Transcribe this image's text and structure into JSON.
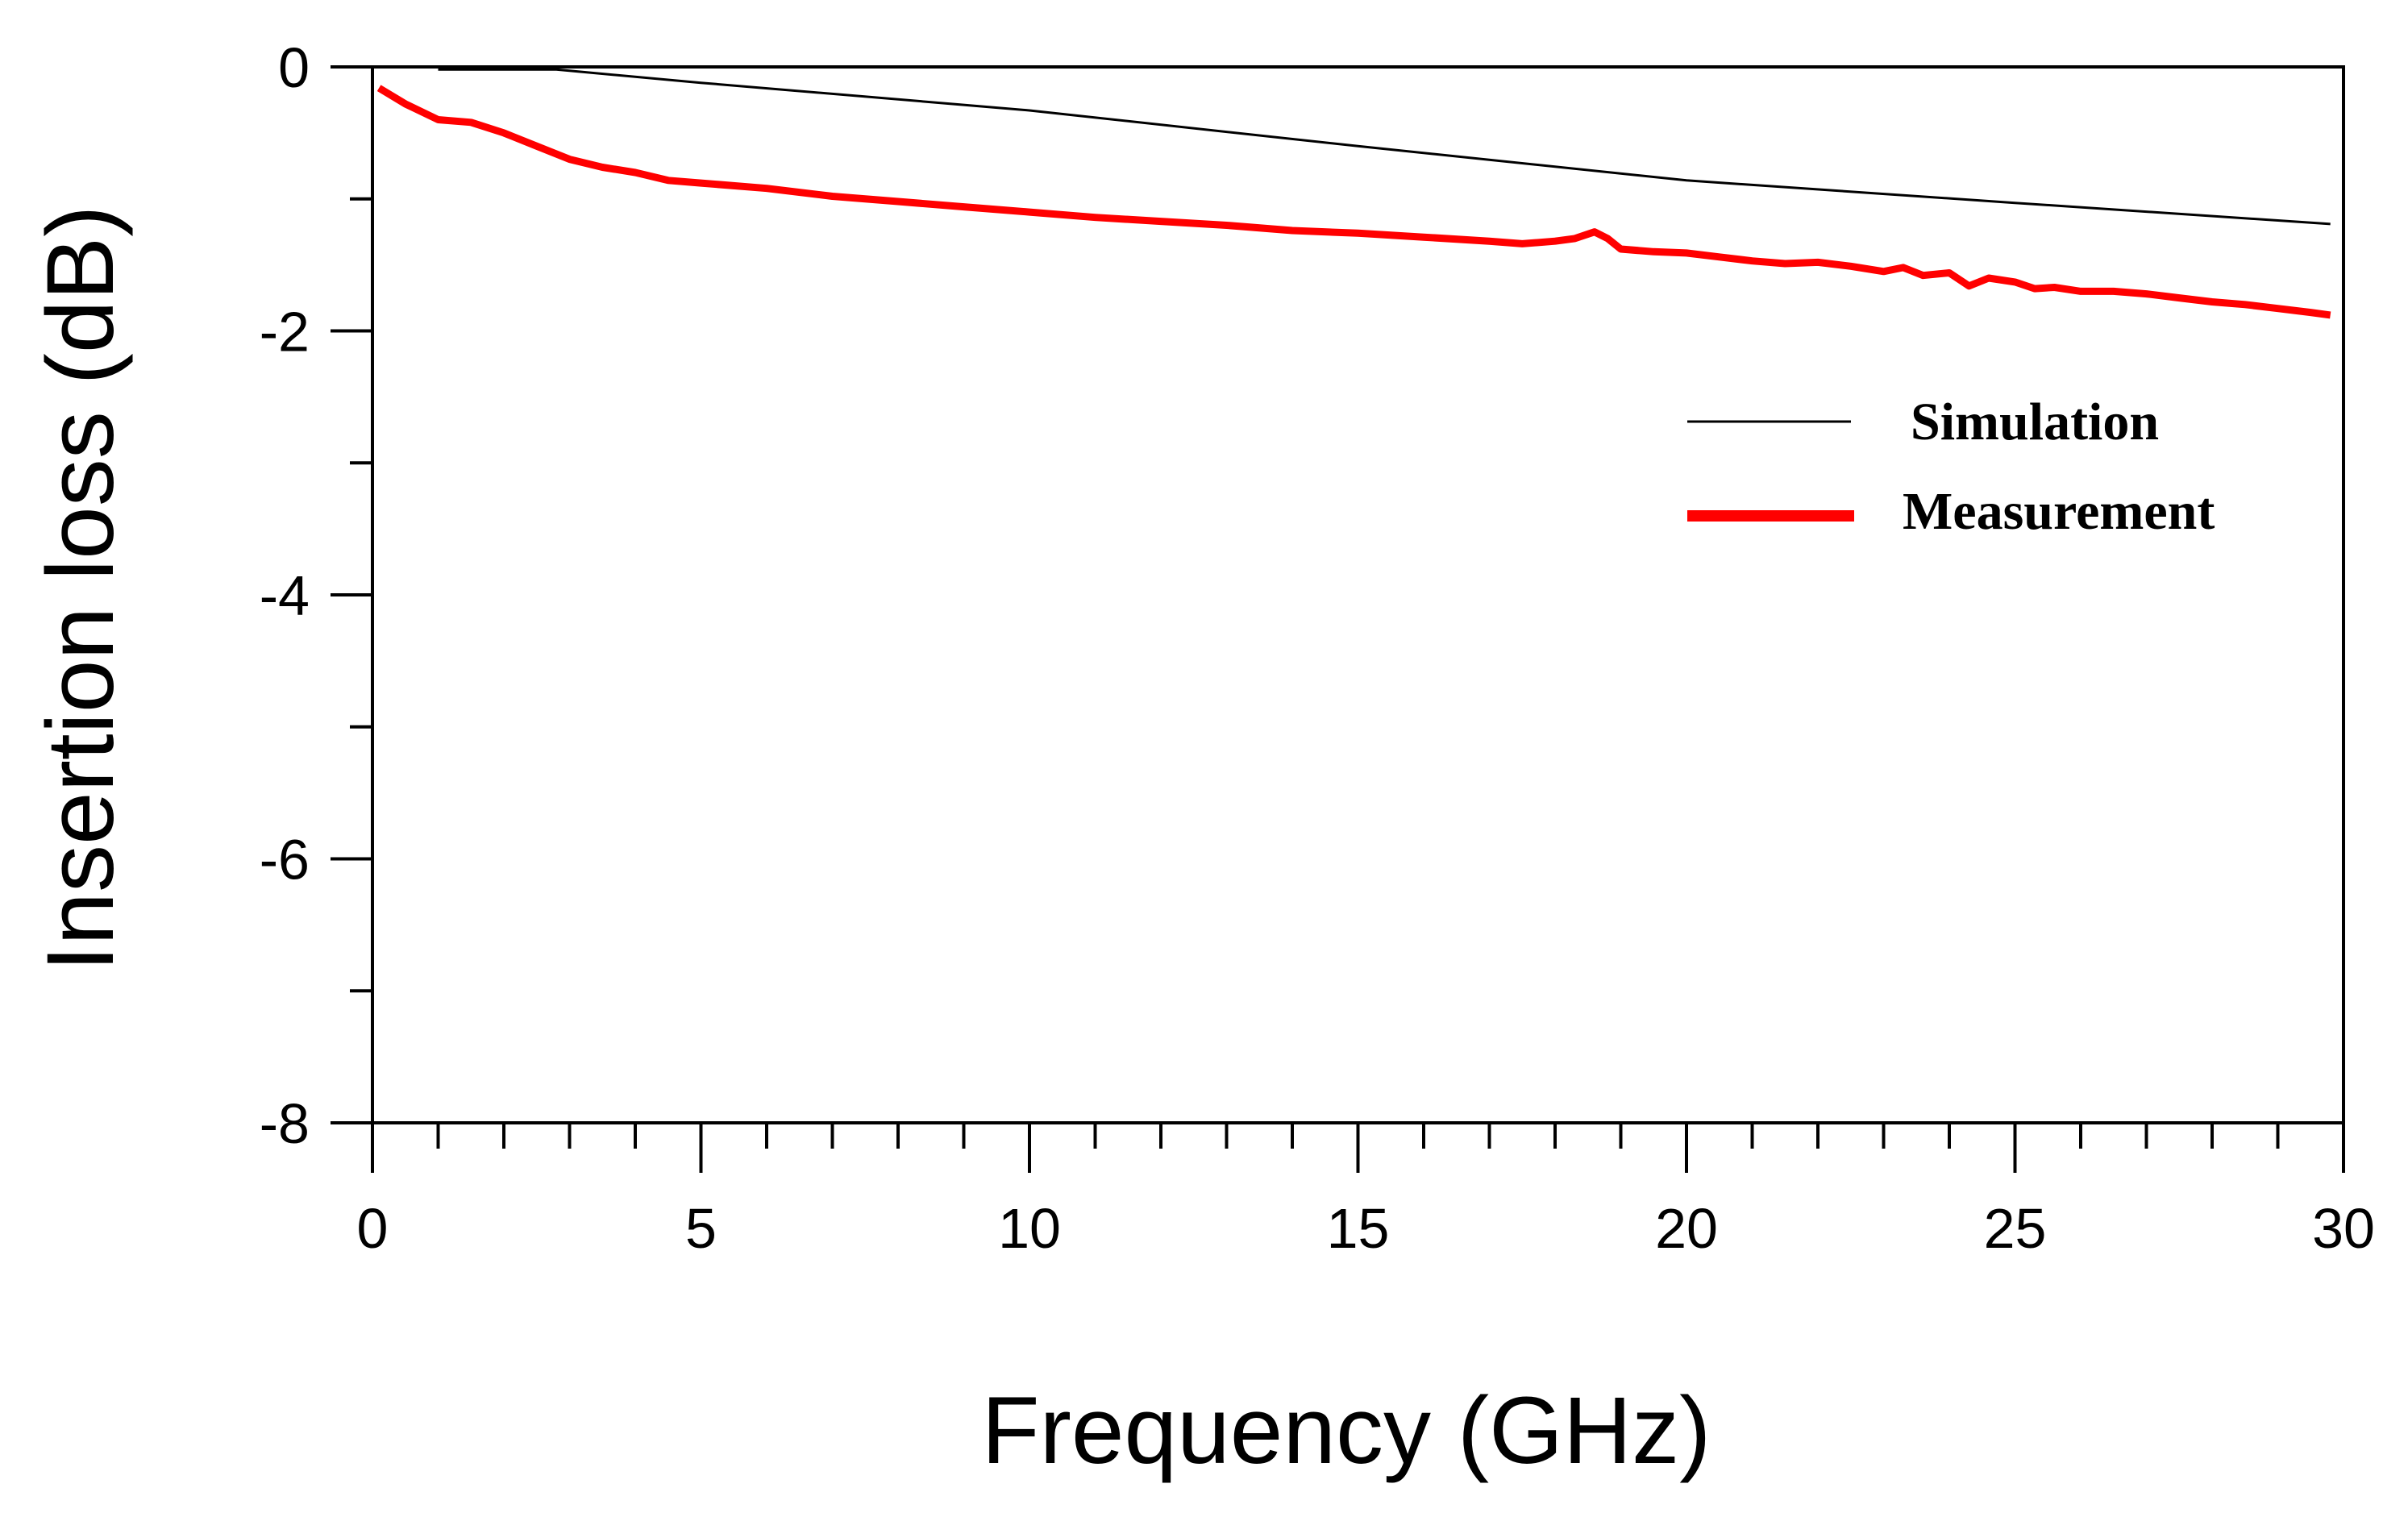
{
  "chart_data": {
    "type": "line",
    "title": "",
    "xlabel": "Frequency (GHz)",
    "ylabel": "Insertion loss (dB)",
    "xlim": [
      0,
      30
    ],
    "ylim": [
      -8,
      0
    ],
    "x_major_ticks": [
      0,
      5,
      10,
      15,
      20,
      25,
      30
    ],
    "x_tick_labels": [
      "0",
      "5",
      "10",
      "15",
      "20",
      "25",
      "30"
    ],
    "x_minor_step": 1,
    "y_major_ticks": [
      0,
      -2,
      -4,
      -6,
      -8
    ],
    "y_tick_labels": [
      "0",
      "-2",
      "-4",
      "-6",
      "-8"
    ],
    "y_minor_step": 1,
    "grid": false,
    "legend_position": "right, upper-middle",
    "series": [
      {
        "name": "Simulation",
        "color": "#000000",
        "x": [
          1,
          2,
          2.8,
          5,
          10,
          15,
          20,
          25,
          29.8
        ],
        "y": [
          -0.02,
          -0.02,
          -0.02,
          -0.12,
          -0.33,
          -0.6,
          -0.86,
          -1.03,
          -1.19
        ]
      },
      {
        "name": "Measurement",
        "color": "#ff0000",
        "x": [
          0.1,
          0.5,
          1,
          1.5,
          2,
          2.5,
          3,
          3.5,
          4,
          4.5,
          5,
          6,
          7,
          8,
          9,
          10,
          11,
          12,
          13,
          14,
          15,
          16,
          17,
          17.5,
          18,
          18.3,
          18.6,
          18.8,
          19,
          19.5,
          20,
          20.5,
          21,
          21.5,
          22,
          22.5,
          23,
          23.3,
          23.6,
          24,
          24.3,
          24.6,
          25,
          25.3,
          25.6,
          26,
          26.5,
          27,
          27.5,
          28,
          28.5,
          29,
          29.5,
          29.8
        ],
        "y": [
          -0.16,
          -0.28,
          -0.4,
          -0.42,
          -0.5,
          -0.6,
          -0.7,
          -0.76,
          -0.8,
          -0.86,
          -0.88,
          -0.92,
          -0.98,
          -1.02,
          -1.06,
          -1.1,
          -1.14,
          -1.17,
          -1.2,
          -1.24,
          -1.26,
          -1.29,
          -1.32,
          -1.34,
          -1.32,
          -1.3,
          -1.25,
          -1.3,
          -1.38,
          -1.4,
          -1.41,
          -1.44,
          -1.47,
          -1.49,
          -1.48,
          -1.51,
          -1.55,
          -1.52,
          -1.58,
          -1.56,
          -1.66,
          -1.6,
          -1.63,
          -1.68,
          -1.67,
          -1.7,
          -1.7,
          -1.72,
          -1.75,
          -1.78,
          -1.8,
          -1.83,
          -1.86,
          -1.88
        ]
      }
    ]
  }
}
